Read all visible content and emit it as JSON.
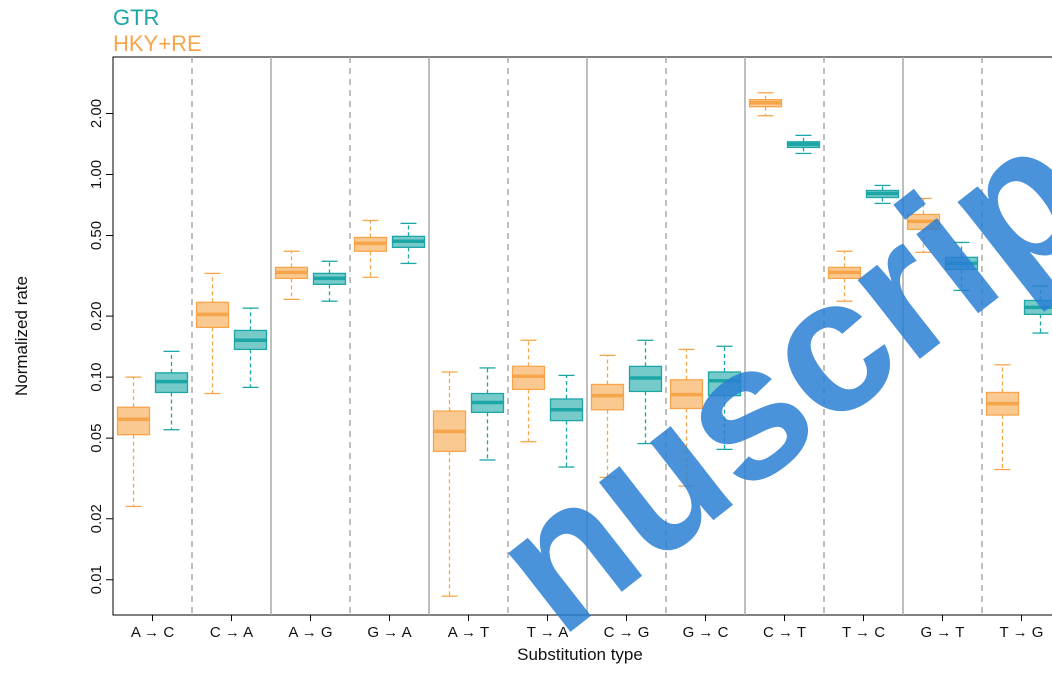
{
  "chart_data": {
    "type": "boxplot",
    "x_label": "Substitution type",
    "y_label": "Normalized rate",
    "log_scale": true,
    "legend": "top-left",
    "categories": [
      "A → C",
      "C → A",
      "A → G",
      "G → A",
      "A → T",
      "T → A",
      "C → G",
      "G → C",
      "C → T",
      "T → C",
      "G → T",
      "T → G"
    ],
    "ylim": [
      0.0067,
      3.8
    ],
    "yticks": [
      0.01,
      0.02,
      0.05,
      {
        "value": 0.1,
        "label": "0.10"
      },
      {
        "value": 0.2,
        "label": "0.20"
      },
      {
        "value": 0.5,
        "label": "0.50"
      },
      {
        "value": 1,
        "label": "1.00"
      },
      {
        "value": 2,
        "label": "2.00"
      }
    ],
    "series": [
      {
        "name": "GTR",
        "color": "#1ca6a6",
        "values": [
          [
            0.055,
            0.084,
            0.095,
            0.105,
            0.134
          ],
          [
            0.089,
            0.137,
            0.152,
            0.17,
            0.219
          ],
          [
            0.237,
            0.287,
            0.307,
            0.325,
            0.373
          ],
          [
            0.364,
            0.437,
            0.468,
            0.495,
            0.574
          ],
          [
            0.039,
            0.067,
            0.075,
            0.083,
            0.111
          ],
          [
            0.036,
            0.061,
            0.069,
            0.078,
            0.102
          ],
          [
            0.047,
            0.085,
            0.099,
            0.113,
            0.152
          ],
          [
            0.044,
            0.081,
            0.096,
            0.106,
            0.142
          ],
          [
            1.27,
            1.36,
            1.41,
            1.45,
            1.56
          ],
          [
            0.72,
            0.77,
            0.806,
            0.834,
            0.883
          ],
          [
            0.268,
            0.34,
            0.364,
            0.39,
            0.462
          ],
          [
            0.165,
            0.204,
            0.221,
            0.239,
            0.281
          ]
        ]
      },
      {
        "name": "HKY+RE",
        "color": "#f7a54a",
        "values": [
          [
            0.023,
            0.052,
            0.062,
            0.071,
            0.1
          ],
          [
            0.083,
            0.176,
            0.204,
            0.234,
            0.325
          ],
          [
            0.242,
            0.307,
            0.329,
            0.348,
            0.418
          ],
          [
            0.311,
            0.418,
            0.457,
            0.489,
            0.593
          ],
          [
            0.0083,
            0.043,
            0.054,
            0.068,
            0.106
          ],
          [
            0.048,
            0.087,
            0.101,
            0.113,
            0.152
          ],
          [
            0.032,
            0.069,
            0.081,
            0.092,
            0.128
          ],
          [
            0.029,
            0.07,
            0.082,
            0.097,
            0.137
          ],
          [
            1.95,
            2.16,
            2.26,
            2.34,
            2.53
          ],
          [
            0.237,
            0.307,
            0.329,
            0.348,
            0.418
          ],
          [
            0.413,
            0.536,
            0.587,
            0.635,
            0.762
          ],
          [
            0.035,
            0.065,
            0.074,
            0.084,
            0.115
          ]
        ]
      }
    ]
  },
  "watermark": "nuscrip"
}
